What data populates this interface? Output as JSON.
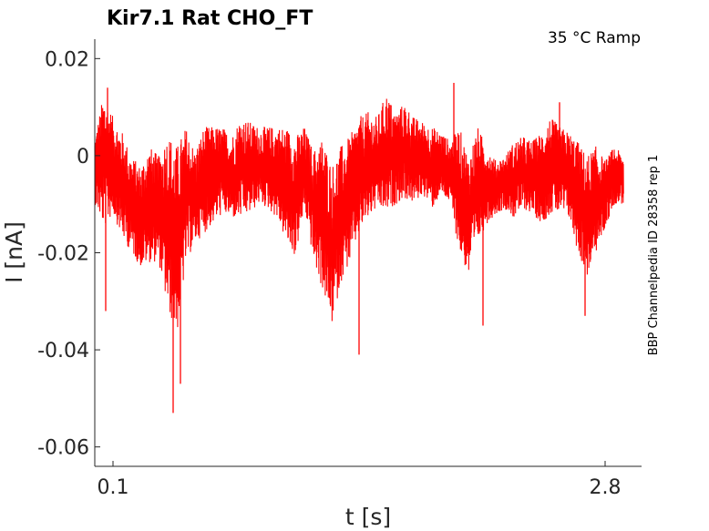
{
  "chart_data": {
    "type": "line",
    "title": "Kir7.1  Rat  CHO_FT",
    "annotation": "35 °C  Ramp",
    "side_label": "BBP Channelpedia ID 28358 rep 1",
    "xlabel": "t [s]",
    "ylabel": "I [nA]",
    "xlim": [
      0.0,
      3.0
    ],
    "ylim": [
      -0.064,
      0.024
    ],
    "xticks": [
      {
        "value": 0.1,
        "label": "0.1"
      },
      {
        "value": 2.8,
        "label": "2.8"
      }
    ],
    "yticks": [
      {
        "value": 0.02,
        "label": "0.02"
      },
      {
        "value": 0,
        "label": "0"
      },
      {
        "value": -0.02,
        "label": "-0.02"
      },
      {
        "value": -0.04,
        "label": "-0.04"
      },
      {
        "value": -0.06,
        "label": "-0.06"
      }
    ],
    "grid": false,
    "series": [
      {
        "color": "#ff0000",
        "x": [
          0.0,
          0.05,
          0.1,
          0.15,
          0.2,
          0.25,
          0.3,
          0.35,
          0.4,
          0.45,
          0.5,
          0.55,
          0.6,
          0.65,
          0.7,
          0.75,
          0.8,
          0.85,
          0.9,
          0.95,
          1.0,
          1.05,
          1.1,
          1.15,
          1.2,
          1.25,
          1.3,
          1.35,
          1.4,
          1.45,
          1.5,
          1.55,
          1.6,
          1.65,
          1.7,
          1.75,
          1.8,
          1.85,
          1.9,
          1.95,
          2.0,
          2.05,
          2.1,
          2.15,
          2.2,
          2.25,
          2.3,
          2.35,
          2.4,
          2.45,
          2.5,
          2.55,
          2.6,
          2.65,
          2.7,
          2.75,
          2.8,
          2.85,
          2.9
        ],
        "upper": [
          0.004,
          0.013,
          0.008,
          0.005,
          0.0,
          -0.002,
          0.002,
          0.0,
          0.005,
          0.002,
          0.006,
          0.001,
          0.006,
          0.006,
          0.006,
          0.004,
          0.008,
          0.007,
          0.006,
          0.006,
          0.006,
          0.006,
          0.004,
          0.006,
          0.001,
          0.004,
          -0.002,
          0.002,
          0.004,
          0.008,
          0.009,
          0.008,
          0.013,
          0.009,
          0.011,
          0.008,
          0.007,
          0.006,
          0.005,
          0.003,
          0.006,
          0.0,
          0.006,
          0.002,
          -0.001,
          0.0,
          0.003,
          0.004,
          0.003,
          0.005,
          0.008,
          0.006,
          0.005,
          0.003,
          0.0,
          0.002,
          -0.001,
          0.002,
          0.0
        ],
        "lower": [
          -0.01,
          -0.015,
          -0.012,
          -0.017,
          -0.02,
          -0.023,
          -0.022,
          -0.022,
          -0.032,
          -0.037,
          -0.022,
          -0.018,
          -0.016,
          -0.014,
          -0.012,
          -0.013,
          -0.013,
          -0.012,
          -0.01,
          -0.011,
          -0.013,
          -0.018,
          -0.021,
          -0.011,
          -0.022,
          -0.028,
          -0.035,
          -0.026,
          -0.022,
          -0.016,
          -0.013,
          -0.011,
          -0.012,
          -0.01,
          -0.009,
          -0.01,
          -0.008,
          -0.011,
          -0.008,
          -0.01,
          -0.02,
          -0.025,
          -0.018,
          -0.014,
          -0.012,
          -0.011,
          -0.013,
          -0.011,
          -0.012,
          -0.014,
          -0.012,
          -0.012,
          -0.013,
          -0.02,
          -0.025,
          -0.02,
          -0.015,
          -0.01,
          -0.01
        ],
        "spikes": [
          {
            "x": 0.06,
            "y": -0.032
          },
          {
            "x": 0.07,
            "y": 0.014
          },
          {
            "x": 0.43,
            "y": -0.053
          },
          {
            "x": 0.47,
            "y": -0.047
          },
          {
            "x": 1.45,
            "y": -0.041
          },
          {
            "x": 1.97,
            "y": 0.015
          },
          {
            "x": 2.13,
            "y": -0.035
          },
          {
            "x": 2.55,
            "y": 0.011
          },
          {
            "x": 2.69,
            "y": -0.033
          }
        ]
      }
    ]
  }
}
